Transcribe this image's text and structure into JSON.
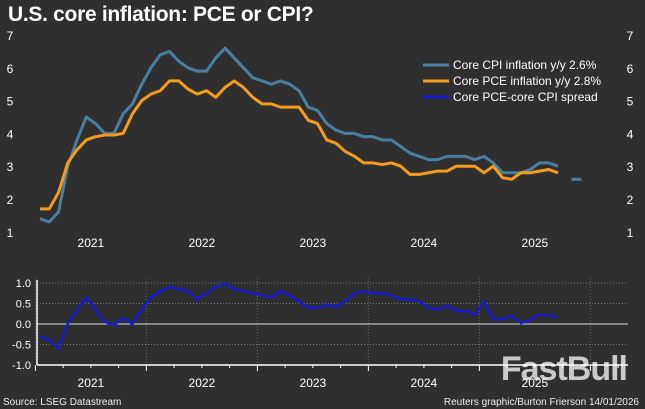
{
  "title": "U.S. core inflation: PCE or CPI?",
  "source": "Source: LSEG Datastream",
  "credit": "Reuters graphic/Burton Frierson 14/01/2026",
  "watermark": "FastBull",
  "chart_data": [
    {
      "type": "line",
      "title": "U.S. core inflation: PCE or CPI?",
      "x_start": "2021-01",
      "frequency": "monthly",
      "xticks": [
        "2021",
        "2022",
        "2023",
        "2024",
        "2025"
      ],
      "yticks": [
        1,
        2,
        3,
        4,
        5,
        6,
        7
      ],
      "ylim": [
        1,
        7
      ],
      "legend_position": "top-right",
      "series": [
        {
          "name": "Core CPI inflation y/y 2.6%",
          "color": "#4a7fa0",
          "values": [
            1.4,
            1.3,
            1.6,
            3.0,
            3.8,
            4.5,
            4.3,
            4.0,
            4.0,
            4.6,
            4.9,
            5.5,
            6.0,
            6.4,
            6.5,
            6.2,
            6.0,
            5.9,
            5.9,
            6.3,
            6.6,
            6.3,
            6.0,
            5.7,
            5.6,
            5.5,
            5.6,
            5.5,
            5.3,
            4.8,
            4.7,
            4.3,
            4.1,
            4.0,
            4.0,
            3.9,
            3.9,
            3.8,
            3.8,
            3.6,
            3.4,
            3.3,
            3.2,
            3.2,
            3.3,
            3.3,
            3.3,
            3.2,
            3.3,
            3.1,
            2.8,
            2.8,
            2.8,
            2.9,
            3.1,
            3.1,
            3.0,
            null,
            2.6
          ]
        },
        {
          "name": "Core PCE inflation y/y 2.8%",
          "color": "#f39c1e",
          "values": [
            1.7,
            1.7,
            2.2,
            3.1,
            3.5,
            3.8,
            3.9,
            3.95,
            3.95,
            4.0,
            4.6,
            5.0,
            5.2,
            5.3,
            5.6,
            5.6,
            5.35,
            5.2,
            5.3,
            5.1,
            5.4,
            5.6,
            5.4,
            5.1,
            4.9,
            4.9,
            4.8,
            4.8,
            4.8,
            4.4,
            4.3,
            3.8,
            3.7,
            3.45,
            3.3,
            3.1,
            3.1,
            3.05,
            3.1,
            3.0,
            2.75,
            2.75,
            2.8,
            2.85,
            2.85,
            3.0,
            3.0,
            3.0,
            2.8,
            3.0,
            2.65,
            2.6,
            2.8,
            2.8,
            2.85,
            2.9,
            2.8
          ]
        },
        {
          "name": "Core PCE-core CPI spread",
          "color": "#1a1ad0",
          "values": []
        }
      ]
    },
    {
      "type": "line",
      "title": "",
      "x_start": "2021-01",
      "frequency": "monthly",
      "xticks": [
        "2021",
        "2022",
        "2023",
        "2024",
        "2025"
      ],
      "yticks": [
        "1.0",
        "0.5",
        "0.0",
        "-0.5",
        "-1.0"
      ],
      "ylim": [
        -1,
        1
      ],
      "series": [
        {
          "name": "Core PCE-core CPI spread",
          "color": "#1a1ad0",
          "values": [
            -0.3,
            -0.4,
            -0.6,
            0.0,
            0.35,
            0.65,
            0.35,
            0.05,
            -0.03,
            0.15,
            0.0,
            0.35,
            0.65,
            0.8,
            0.9,
            0.85,
            0.8,
            0.6,
            0.75,
            0.9,
            1.0,
            0.85,
            0.8,
            0.75,
            0.7,
            0.65,
            0.8,
            0.7,
            0.55,
            0.4,
            0.4,
            0.47,
            0.42,
            0.55,
            0.75,
            0.8,
            0.75,
            0.75,
            0.7,
            0.6,
            0.6,
            0.55,
            0.4,
            0.35,
            0.45,
            0.32,
            0.32,
            0.22,
            0.55,
            0.12,
            0.12,
            0.2,
            0.02,
            0.1,
            0.23,
            0.2,
            0.17
          ]
        }
      ]
    }
  ]
}
